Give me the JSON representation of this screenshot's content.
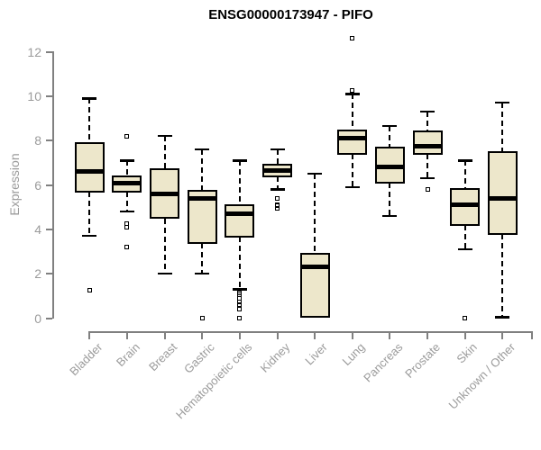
{
  "chart_data": {
    "type": "boxplot",
    "title": "ENSG00000173947 - PIFO",
    "ylabel": "Expression",
    "xlabel": "",
    "ylim": [
      0,
      12
    ],
    "yticks": [
      0,
      2,
      4,
      6,
      8,
      10,
      12
    ],
    "grid": false,
    "legend": "none",
    "categories": [
      "Bladder",
      "Brain",
      "Breast",
      "Gastric",
      "Hematopoietic cells",
      "Kidney",
      "Liver",
      "Lung",
      "Pancreas",
      "Prostate",
      "Skin",
      "Unknown / Other"
    ],
    "series": [
      {
        "name": "Bladder",
        "low": 3.7,
        "q1": 5.7,
        "median": 6.6,
        "q3": 7.9,
        "high": 9.9,
        "outliers": [
          1.25
        ]
      },
      {
        "name": "Brain",
        "low": 4.8,
        "q1": 5.7,
        "median": 6.1,
        "q3": 6.4,
        "high": 7.1,
        "outliers": [
          8.2,
          4.25,
          4.1,
          3.2
        ]
      },
      {
        "name": "Breast",
        "low": 2.0,
        "q1": 4.5,
        "median": 5.6,
        "q3": 6.7,
        "high": 8.2,
        "outliers": []
      },
      {
        "name": "Gastric",
        "low": 2.0,
        "q1": 3.4,
        "median": 5.4,
        "q3": 5.75,
        "high": 7.6,
        "outliers": [
          0
        ]
      },
      {
        "name": "Hematopoietic cells",
        "low": 1.3,
        "q1": 3.65,
        "median": 4.7,
        "q3": 5.1,
        "high": 7.1,
        "outliers": [
          1.15,
          1.05,
          0.9,
          0.75,
          0.6,
          0.4,
          0
        ]
      },
      {
        "name": "Kidney",
        "low": 5.8,
        "q1": 6.4,
        "median": 6.65,
        "q3": 6.9,
        "high": 7.6,
        "outliers": [
          5.4,
          5.1,
          5.05,
          4.95
        ]
      },
      {
        "name": "Liver",
        "low": 0.05,
        "q1": 0.05,
        "median": 2.3,
        "q3": 2.9,
        "high": 6.5,
        "outliers": []
      },
      {
        "name": "Lung",
        "low": 5.9,
        "q1": 7.4,
        "median": 8.1,
        "q3": 8.45,
        "high": 10.1,
        "outliers": [
          12.6,
          10.25
        ]
      },
      {
        "name": "Pancreas",
        "low": 4.6,
        "q1": 6.1,
        "median": 6.8,
        "q3": 7.7,
        "high": 8.65,
        "outliers": []
      },
      {
        "name": "Prostate",
        "low": 6.3,
        "q1": 7.4,
        "median": 7.75,
        "q3": 8.4,
        "high": 9.3,
        "outliers": [
          5.8
        ]
      },
      {
        "name": "Skin",
        "low": 3.1,
        "q1": 4.2,
        "median": 5.1,
        "q3": 5.8,
        "high": 7.1,
        "outliers": [
          0
        ]
      },
      {
        "name": "Unknown / Other",
        "low": 0.05,
        "q1": 3.8,
        "median": 5.4,
        "q3": 7.5,
        "high": 9.7,
        "outliers": []
      }
    ],
    "colors": {
      "box_fill": "#EDE7CB",
      "box_border": "#000000",
      "median": "#000000",
      "whisker": "#000000",
      "axis": "#808080",
      "tick_text": "#9B9B9B",
      "title_text": "#000000"
    }
  }
}
